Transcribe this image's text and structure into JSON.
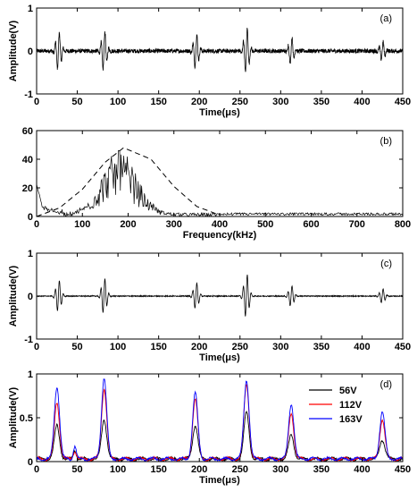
{
  "chart_data": [
    {
      "panel": "(a)",
      "type": "line",
      "xlabel": "Time(μs)",
      "ylabel": "Amplitude(V)",
      "xlim": [
        0,
        450
      ],
      "ylim": [
        -1,
        1
      ],
      "xticks": [
        "0",
        "50",
        "100",
        "150",
        "200",
        "250",
        "300",
        "350",
        "400",
        "450"
      ],
      "yticks": [
        "-1",
        "0",
        "1"
      ],
      "grid": false,
      "series": [
        {
          "color": "#000000",
          "bursts": [
            {
              "t": 27,
              "amp": 0.45
            },
            {
              "t": 83,
              "amp": 0.48
            },
            {
              "t": 196,
              "amp": 0.4
            },
            {
              "t": 258,
              "amp": 0.55
            },
            {
              "t": 313,
              "amp": 0.32
            },
            {
              "t": 425,
              "amp": 0.22
            }
          ],
          "noise_level": 0.05
        }
      ]
    },
    {
      "panel": "(b)",
      "type": "line",
      "xlabel": "Frequency(kHz)",
      "ylabel": "",
      "xlim": [
        0,
        800
      ],
      "ylim": [
        0,
        60
      ],
      "xticks": [
        "0",
        "100",
        "200",
        "300",
        "400",
        "500",
        "600",
        "700",
        "800"
      ],
      "yticks": [
        "0",
        "20",
        "40",
        "60"
      ],
      "grid": false,
      "series": [
        {
          "style": "solid",
          "color": "#000000",
          "peak_frequency": 180,
          "peak_value": 46,
          "lowfreq_start": 21
        },
        {
          "style": "dashed",
          "color": "#000000",
          "x": [
            0,
            50,
            100,
            150,
            190,
            250,
            300,
            350,
            400
          ],
          "y": [
            0,
            6,
            19,
            38,
            48,
            40,
            21,
            7,
            1
          ]
        }
      ]
    },
    {
      "panel": "(c)",
      "type": "line",
      "xlabel": "Time(μs)",
      "ylabel": "Amplitude(V)",
      "xlim": [
        0,
        450
      ],
      "ylim": [
        -1,
        1
      ],
      "xticks": [
        "0",
        "50",
        "100",
        "150",
        "200",
        "250",
        "300",
        "350",
        "400",
        "450"
      ],
      "yticks": [
        "-1",
        "0",
        "1"
      ],
      "grid": false,
      "series": [
        {
          "color": "#000000",
          "bursts": [
            {
              "t": 27,
              "amp": 0.38
            },
            {
              "t": 83,
              "amp": 0.42
            },
            {
              "t": 196,
              "amp": 0.32
            },
            {
              "t": 258,
              "amp": 0.52
            },
            {
              "t": 313,
              "amp": 0.25
            },
            {
              "t": 425,
              "amp": 0.17
            }
          ],
          "noise_level": 0.01
        }
      ]
    },
    {
      "panel": "(d)",
      "type": "line",
      "xlabel": "Time(μs)",
      "ylabel": "Amplitude(V)",
      "xlim": [
        0,
        450
      ],
      "ylim": [
        0,
        1
      ],
      "xticks": [
        "0",
        "50",
        "100",
        "150",
        "200",
        "250",
        "300",
        "350",
        "400",
        "450"
      ],
      "yticks": [
        "0",
        "0.5",
        "1"
      ],
      "grid": false,
      "legend": "top-right",
      "peak_times": [
        25,
        47,
        83,
        195,
        258,
        313,
        425
      ],
      "series": [
        {
          "name": "56V",
          "color": "#000000",
          "peaks": [
            0.38,
            0.1,
            0.45,
            0.38,
            0.53,
            0.27,
            0.22
          ]
        },
        {
          "name": "112V",
          "color": "#ff0000",
          "peaks": [
            0.64,
            0.1,
            0.8,
            0.68,
            0.85,
            0.52,
            0.45
          ]
        },
        {
          "name": "163V",
          "color": "#0000ff",
          "peaks": [
            0.83,
            0.15,
            0.92,
            0.75,
            0.9,
            0.63,
            0.54
          ]
        }
      ]
    }
  ]
}
